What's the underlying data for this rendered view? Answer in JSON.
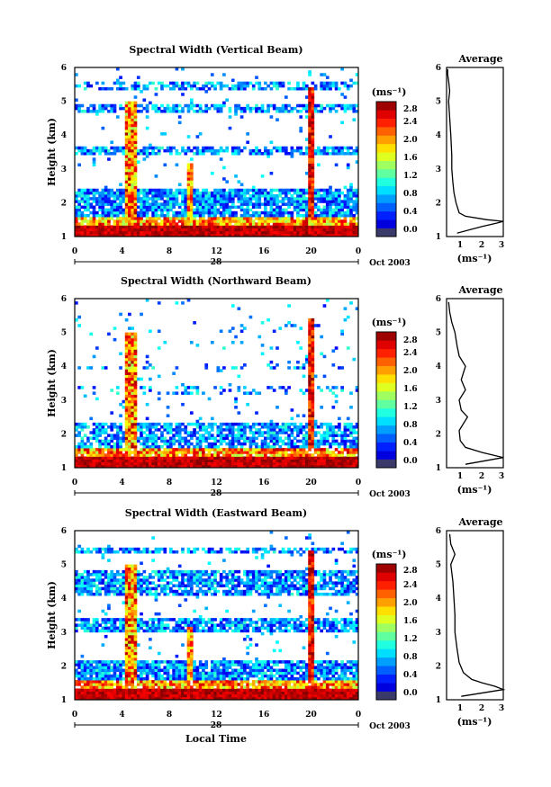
{
  "figure": {
    "xlabel": "Local Time",
    "date_label": "Oct 2003",
    "day_label": "28"
  },
  "chart_data": [
    {
      "type": "heatmap",
      "title": "Spectral Width (Vertical Beam)",
      "xlabel": "",
      "ylabel": "Height (km)",
      "colorbar_label": "(ms⁻¹)",
      "x_ticks": [
        "0",
        "4",
        "8",
        "12",
        "16",
        "20",
        "0"
      ],
      "y_ticks": [
        "1",
        "2",
        "3",
        "4",
        "5",
        "6"
      ],
      "colorbar_ticks": [
        "0.0",
        "0.4",
        "0.8",
        "1.2",
        "1.6",
        "2.0",
        "2.4",
        "2.8"
      ],
      "xlim": [
        0,
        24
      ],
      "ylim": [
        1,
        6
      ],
      "clim": [
        0,
        3.0
      ],
      "average_profile": {
        "title": "Average",
        "xlabel": "(ms⁻¹)",
        "x_ticks": [
          "1",
          "2",
          "3"
        ],
        "y_ticks": [
          "1",
          "2",
          "3",
          "4",
          "5",
          "6"
        ],
        "xlim": [
          0.3,
          3
        ],
        "ylim": [
          1,
          6
        ],
        "height_km": [
          1.1,
          1.3,
          1.4,
          1.45,
          1.5,
          1.6,
          1.7,
          2.0,
          2.3,
          2.6,
          3.0,
          3.4,
          4.0,
          4.5,
          5.0,
          5.3,
          5.6,
          5.8,
          5.95
        ],
        "width_ms": [
          0.8,
          2.0,
          2.7,
          3.0,
          2.2,
          1.2,
          0.9,
          0.75,
          0.65,
          0.6,
          0.55,
          0.55,
          0.5,
          0.45,
          0.4,
          0.45,
          0.4,
          0.35,
          0.35
        ]
      }
    },
    {
      "type": "heatmap",
      "title": "Spectral Width (Northward Beam)",
      "xlabel": "",
      "ylabel": "Height (km)",
      "colorbar_label": "(ms⁻¹)",
      "x_ticks": [
        "0",
        "4",
        "8",
        "12",
        "16",
        "20",
        "0"
      ],
      "y_ticks": [
        "1",
        "2",
        "3",
        "4",
        "5",
        "6"
      ],
      "colorbar_ticks": [
        "0.0",
        "0.4",
        "0.8",
        "1.2",
        "1.6",
        "2.0",
        "2.4",
        "2.8"
      ],
      "xlim": [
        0,
        24
      ],
      "ylim": [
        1,
        6
      ],
      "clim": [
        0,
        3.0
      ],
      "average_profile": {
        "title": "Average",
        "xlabel": "(ms⁻¹)",
        "x_ticks": [
          "1",
          "2",
          "3"
        ],
        "y_ticks": [
          "1",
          "2",
          "3",
          "4",
          "5",
          "6"
        ],
        "xlim": [
          0.3,
          3
        ],
        "ylim": [
          1,
          6
        ],
        "height_km": [
          1.1,
          1.3,
          1.45,
          1.6,
          1.8,
          2.1,
          2.5,
          2.7,
          3.0,
          3.3,
          3.6,
          4.0,
          4.3,
          4.6,
          5.0,
          5.3,
          5.6,
          5.9
        ],
        "width_ms": [
          1.2,
          3.0,
          2.0,
          1.2,
          0.95,
          0.9,
          1.3,
          1.0,
          0.9,
          1.2,
          1.0,
          1.2,
          0.9,
          0.8,
          0.7,
          0.55,
          0.45,
          0.4
        ]
      }
    },
    {
      "type": "heatmap",
      "title": "Spectral Width (Eastward Beam)",
      "xlabel": "Local Time",
      "ylabel": "Height (km)",
      "colorbar_label": "(ms⁻¹)",
      "x_ticks": [
        "0",
        "4",
        "8",
        "12",
        "16",
        "20",
        "0"
      ],
      "y_ticks": [
        "1",
        "2",
        "3",
        "4",
        "5",
        "6"
      ],
      "colorbar_ticks": [
        "0.0",
        "0.4",
        "0.8",
        "1.2",
        "1.6",
        "2.0",
        "2.4",
        "2.8"
      ],
      "xlim": [
        0,
        24
      ],
      "ylim": [
        1,
        6
      ],
      "clim": [
        0,
        3.0
      ],
      "average_profile": {
        "title": "Average",
        "xlabel": "(ms⁻¹)",
        "x_ticks": [
          "1",
          "2",
          "3"
        ],
        "y_ticks": [
          "1",
          "2",
          "3",
          "4",
          "5",
          "6"
        ],
        "xlim": [
          0.3,
          3
        ],
        "ylim": [
          1,
          6
        ],
        "height_km": [
          1.1,
          1.3,
          1.4,
          1.5,
          1.6,
          1.8,
          2.1,
          2.5,
          3.0,
          3.5,
          4.0,
          4.5,
          5.0,
          5.3,
          5.6,
          5.9
        ],
        "width_ms": [
          1.0,
          3.0,
          2.6,
          2.0,
          1.5,
          1.1,
          0.9,
          0.8,
          0.7,
          0.7,
          0.65,
          0.6,
          0.5,
          0.7,
          0.5,
          0.45
        ]
      }
    }
  ]
}
